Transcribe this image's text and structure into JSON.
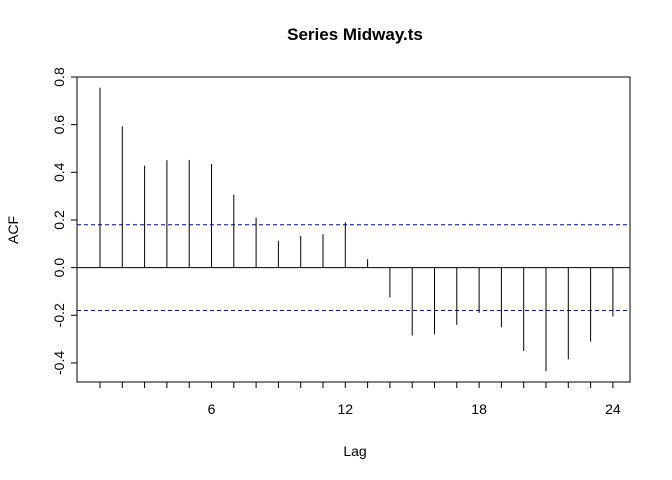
{
  "chart_data": {
    "type": "bar",
    "title": "Series  Midway.ts",
    "xlabel": "Lag",
    "ylabel": "ACF",
    "xlim": [
      0,
      24.9
    ],
    "ylim": [
      -0.48,
      0.8
    ],
    "x_ticks": [
      6,
      12,
      18,
      24
    ],
    "x_minor_ticks": [
      1,
      2,
      3,
      4,
      5,
      6,
      7,
      8,
      9,
      10,
      11,
      12,
      13,
      14,
      15,
      16,
      17,
      18,
      19,
      20,
      21,
      22,
      23,
      24
    ],
    "y_ticks": [
      -0.4,
      -0.2,
      0.0,
      0.2,
      0.4,
      0.6,
      0.8
    ],
    "y_tick_labels": [
      "-0.4",
      "-0.2",
      "0.0",
      "0.2",
      "0.4",
      "0.6",
      "0.8"
    ],
    "lags": [
      1,
      2,
      3,
      4,
      5,
      6,
      7,
      8,
      9,
      10,
      11,
      12,
      13,
      14,
      15,
      16,
      17,
      18,
      19,
      20,
      21,
      22,
      23,
      24
    ],
    "values": [
      0.755,
      0.593,
      0.428,
      0.451,
      0.452,
      0.435,
      0.306,
      0.21,
      0.113,
      0.133,
      0.14,
      0.19,
      0.035,
      -0.125,
      -0.285,
      -0.28,
      -0.24,
      -0.19,
      -0.25,
      -0.35,
      -0.435,
      -0.385,
      -0.31,
      -0.205
    ],
    "confidence_limits": [
      0.18,
      -0.18
    ],
    "confidence_color": "#0000cc",
    "grid": false
  }
}
